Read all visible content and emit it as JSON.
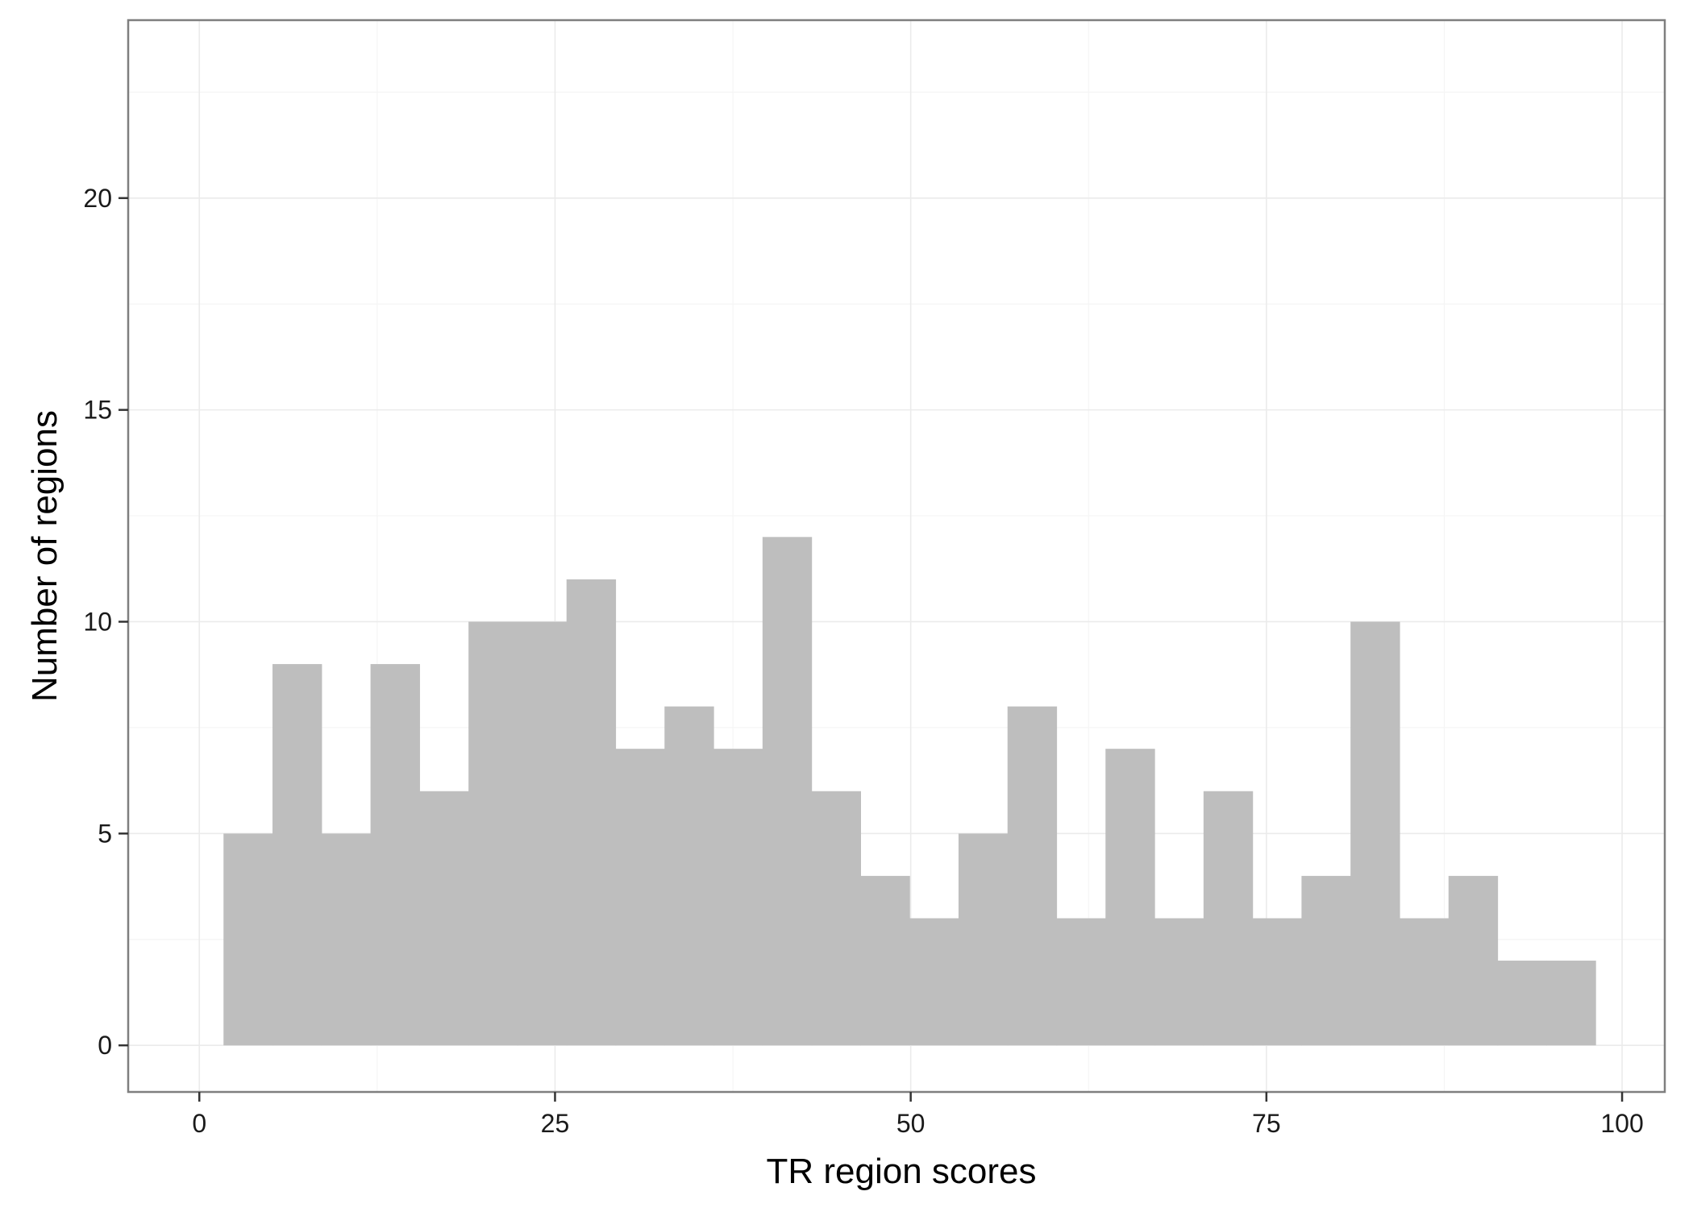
{
  "chart_data": {
    "type": "bar",
    "subtype": "histogram",
    "xlabel": "TR region scores",
    "ylabel": "Number of regions",
    "xlim": [
      -5,
      103
    ],
    "ylim": [
      -1.1,
      24.2
    ],
    "bin_width": 3.444,
    "bin_start": 1.7,
    "counts": [
      5,
      9,
      5,
      9,
      6,
      10,
      10,
      11,
      7,
      8,
      7,
      12,
      6,
      4,
      3,
      5,
      8,
      3,
      7,
      3,
      6,
      3,
      4,
      10,
      3,
      4,
      2,
      2
    ],
    "x_ticks": [
      0,
      25,
      50,
      75,
      100
    ],
    "x_tick_labels": [
      "0",
      "25",
      "50",
      "75",
      "100"
    ],
    "y_ticks": [
      0,
      5,
      10,
      15,
      20
    ],
    "y_tick_labels": [
      "0",
      "5",
      "10",
      "15",
      "20"
    ],
    "grid": true,
    "legend": "none",
    "colors": {
      "bar_fill": "#bebebe",
      "grid_major": "#ebebeb",
      "grid_minor": "#f5f5f5",
      "panel_border": "#7f7f7f",
      "tick": "#333333"
    }
  }
}
